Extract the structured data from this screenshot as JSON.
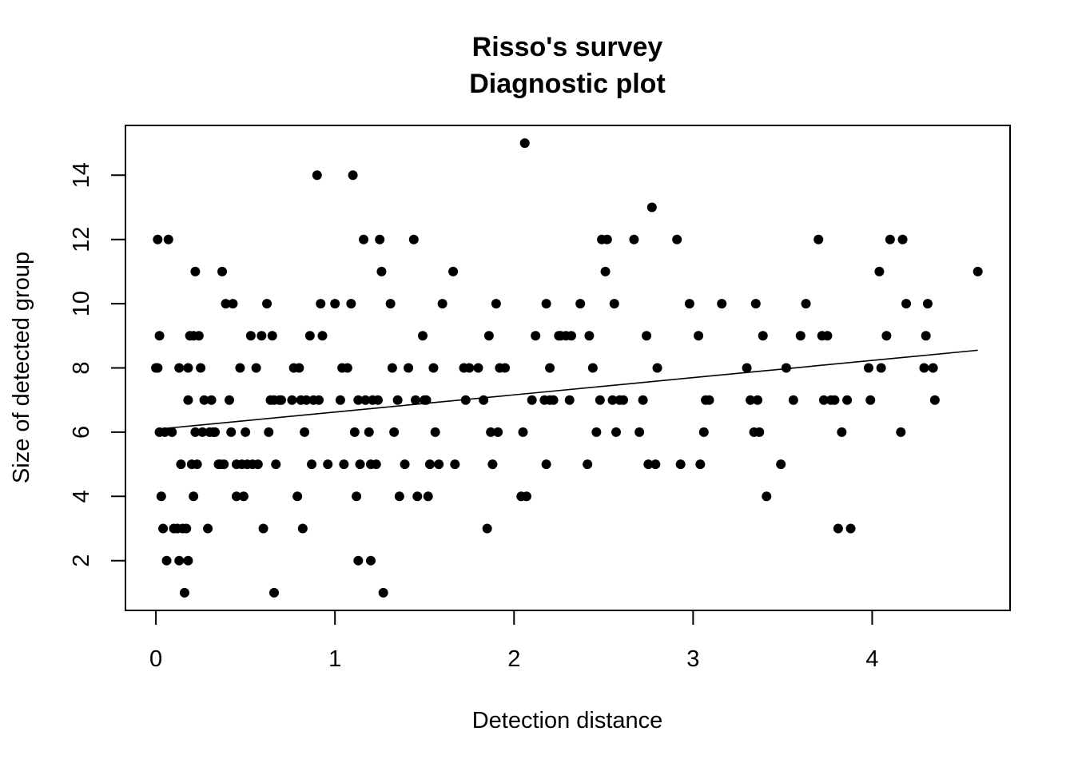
{
  "chart_data": {
    "type": "scatter",
    "title": "Risso's survey",
    "subtitle": "Diagnostic plot",
    "xlabel": "Detection distance",
    "ylabel": "Size of detected group",
    "xlim": [
      -0.17,
      4.77
    ],
    "ylim": [
      0.45,
      15.55
    ],
    "x_ticks": [
      "0",
      "1",
      "2",
      "3",
      "4"
    ],
    "y_ticks": [
      "2",
      "4",
      "6",
      "8",
      "10",
      "12",
      "14"
    ],
    "grid": false,
    "point_color": "#000000",
    "points": [
      [
        0.0,
        8
      ],
      [
        0.01,
        8
      ],
      [
        0.01,
        12
      ],
      [
        0.02,
        9
      ],
      [
        0.02,
        6
      ],
      [
        0.03,
        4
      ],
      [
        0.04,
        3
      ],
      [
        0.05,
        6
      ],
      [
        0.06,
        2
      ],
      [
        0.07,
        12
      ],
      [
        0.09,
        6
      ],
      [
        0.1,
        3
      ],
      [
        0.12,
        3
      ],
      [
        0.13,
        2
      ],
      [
        0.13,
        8
      ],
      [
        0.14,
        5
      ],
      [
        0.15,
        3
      ],
      [
        0.16,
        1
      ],
      [
        0.17,
        3
      ],
      [
        0.18,
        2
      ],
      [
        0.18,
        7
      ],
      [
        0.18,
        8
      ],
      [
        0.19,
        9
      ],
      [
        0.2,
        5
      ],
      [
        0.21,
        4
      ],
      [
        0.21,
        9
      ],
      [
        0.22,
        6
      ],
      [
        0.22,
        11
      ],
      [
        0.23,
        5
      ],
      [
        0.24,
        9
      ],
      [
        0.25,
        8
      ],
      [
        0.26,
        6
      ],
      [
        0.27,
        7
      ],
      [
        0.29,
        3
      ],
      [
        0.3,
        6
      ],
      [
        0.31,
        7
      ],
      [
        0.32,
        6
      ],
      [
        0.33,
        6
      ],
      [
        0.35,
        5
      ],
      [
        0.36,
        5
      ],
      [
        0.37,
        11
      ],
      [
        0.38,
        5
      ],
      [
        0.39,
        10
      ],
      [
        0.41,
        7
      ],
      [
        0.42,
        6
      ],
      [
        0.43,
        10
      ],
      [
        0.45,
        5
      ],
      [
        0.45,
        4
      ],
      [
        0.47,
        8
      ],
      [
        0.48,
        5
      ],
      [
        0.49,
        4
      ],
      [
        0.5,
        6
      ],
      [
        0.51,
        5
      ],
      [
        0.53,
        9
      ],
      [
        0.54,
        5
      ],
      [
        0.56,
        8
      ],
      [
        0.57,
        5
      ],
      [
        0.59,
        9
      ],
      [
        0.6,
        3
      ],
      [
        0.62,
        10
      ],
      [
        0.63,
        6
      ],
      [
        0.64,
        7
      ],
      [
        0.65,
        9
      ],
      [
        0.66,
        7
      ],
      [
        0.66,
        1
      ],
      [
        0.67,
        5
      ],
      [
        0.69,
        7
      ],
      [
        0.7,
        7
      ],
      [
        0.76,
        7
      ],
      [
        0.77,
        8
      ],
      [
        0.79,
        4
      ],
      [
        0.8,
        8
      ],
      [
        0.81,
        7
      ],
      [
        0.82,
        3
      ],
      [
        0.83,
        6
      ],
      [
        0.84,
        7
      ],
      [
        0.86,
        9
      ],
      [
        0.87,
        5
      ],
      [
        0.88,
        7
      ],
      [
        0.9,
        14
      ],
      [
        0.91,
        7
      ],
      [
        0.92,
        10
      ],
      [
        0.93,
        9
      ],
      [
        0.96,
        5
      ],
      [
        1.0,
        10
      ],
      [
        1.03,
        7
      ],
      [
        1.04,
        8
      ],
      [
        1.05,
        5
      ],
      [
        1.07,
        8
      ],
      [
        1.09,
        10
      ],
      [
        1.1,
        14
      ],
      [
        1.11,
        6
      ],
      [
        1.12,
        4
      ],
      [
        1.13,
        7
      ],
      [
        1.13,
        2
      ],
      [
        1.14,
        5
      ],
      [
        1.16,
        12
      ],
      [
        1.17,
        7
      ],
      [
        1.19,
        6
      ],
      [
        1.2,
        2
      ],
      [
        1.2,
        5
      ],
      [
        1.21,
        7
      ],
      [
        1.23,
        5
      ],
      [
        1.24,
        7
      ],
      [
        1.25,
        12
      ],
      [
        1.26,
        11
      ],
      [
        1.27,
        1
      ],
      [
        1.31,
        10
      ],
      [
        1.32,
        8
      ],
      [
        1.33,
        6
      ],
      [
        1.35,
        7
      ],
      [
        1.36,
        4
      ],
      [
        1.39,
        5
      ],
      [
        1.41,
        8
      ],
      [
        1.44,
        12
      ],
      [
        1.45,
        7
      ],
      [
        1.46,
        4
      ],
      [
        1.49,
        9
      ],
      [
        1.5,
        7
      ],
      [
        1.51,
        7
      ],
      [
        1.52,
        4
      ],
      [
        1.53,
        5
      ],
      [
        1.55,
        8
      ],
      [
        1.56,
        6
      ],
      [
        1.58,
        5
      ],
      [
        1.6,
        10
      ],
      [
        1.66,
        11
      ],
      [
        1.67,
        5
      ],
      [
        1.72,
        8
      ],
      [
        1.73,
        7
      ],
      [
        1.75,
        8
      ],
      [
        1.8,
        8
      ],
      [
        1.83,
        7
      ],
      [
        1.85,
        3
      ],
      [
        1.86,
        9
      ],
      [
        1.87,
        6
      ],
      [
        1.88,
        5
      ],
      [
        1.9,
        10
      ],
      [
        1.91,
        6
      ],
      [
        1.92,
        8
      ],
      [
        1.95,
        8
      ],
      [
        2.04,
        4
      ],
      [
        2.05,
        6
      ],
      [
        2.06,
        15
      ],
      [
        2.07,
        4
      ],
      [
        2.1,
        7
      ],
      [
        2.12,
        9
      ],
      [
        2.17,
        7
      ],
      [
        2.18,
        5
      ],
      [
        2.18,
        10
      ],
      [
        2.2,
        7
      ],
      [
        2.2,
        8
      ],
      [
        2.22,
        7
      ],
      [
        2.25,
        9
      ],
      [
        2.26,
        9
      ],
      [
        2.29,
        9
      ],
      [
        2.31,
        7
      ],
      [
        2.32,
        9
      ],
      [
        2.37,
        10
      ],
      [
        2.41,
        5
      ],
      [
        2.42,
        9
      ],
      [
        2.44,
        8
      ],
      [
        2.46,
        6
      ],
      [
        2.48,
        7
      ],
      [
        2.49,
        12
      ],
      [
        2.51,
        11
      ],
      [
        2.52,
        12
      ],
      [
        2.55,
        7
      ],
      [
        2.56,
        10
      ],
      [
        2.57,
        6
      ],
      [
        2.59,
        7
      ],
      [
        2.61,
        7
      ],
      [
        2.67,
        12
      ],
      [
        2.7,
        6
      ],
      [
        2.72,
        7
      ],
      [
        2.74,
        9
      ],
      [
        2.75,
        5
      ],
      [
        2.77,
        13
      ],
      [
        2.79,
        5
      ],
      [
        2.8,
        8
      ],
      [
        2.91,
        12
      ],
      [
        2.93,
        5
      ],
      [
        2.98,
        10
      ],
      [
        3.03,
        9
      ],
      [
        3.04,
        5
      ],
      [
        3.06,
        6
      ],
      [
        3.07,
        7
      ],
      [
        3.09,
        7
      ],
      [
        3.16,
        10
      ],
      [
        3.3,
        8
      ],
      [
        3.32,
        7
      ],
      [
        3.34,
        6
      ],
      [
        3.35,
        10
      ],
      [
        3.36,
        7
      ],
      [
        3.37,
        6
      ],
      [
        3.39,
        9
      ],
      [
        3.41,
        4
      ],
      [
        3.49,
        5
      ],
      [
        3.52,
        8
      ],
      [
        3.56,
        7
      ],
      [
        3.6,
        9
      ],
      [
        3.63,
        10
      ],
      [
        3.7,
        12
      ],
      [
        3.72,
        9
      ],
      [
        3.73,
        7
      ],
      [
        3.75,
        9
      ],
      [
        3.77,
        7
      ],
      [
        3.79,
        7
      ],
      [
        3.81,
        3
      ],
      [
        3.83,
        6
      ],
      [
        3.86,
        7
      ],
      [
        3.88,
        3
      ],
      [
        3.98,
        8
      ],
      [
        3.99,
        7
      ],
      [
        4.04,
        11
      ],
      [
        4.05,
        8
      ],
      [
        4.08,
        9
      ],
      [
        4.1,
        12
      ],
      [
        4.16,
        6
      ],
      [
        4.17,
        12
      ],
      [
        4.19,
        10
      ],
      [
        4.29,
        8
      ],
      [
        4.3,
        9
      ],
      [
        4.31,
        10
      ],
      [
        4.34,
        8
      ],
      [
        4.35,
        7
      ],
      [
        4.59,
        11
      ]
    ],
    "fit_line": [
      [
        0.02,
        6.1
      ],
      [
        4.59,
        8.55
      ]
    ]
  }
}
